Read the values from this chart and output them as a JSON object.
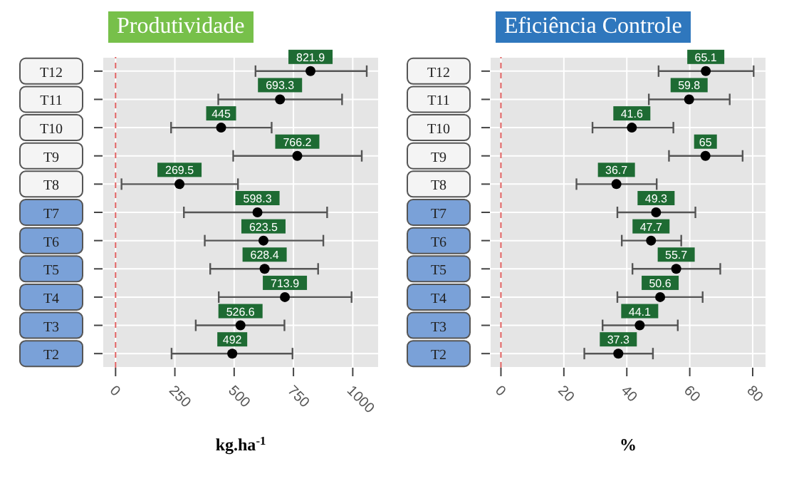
{
  "chart_data": [
    {
      "type": "scatter",
      "title": "Produtividade",
      "xlabel": "kg.ha$^{-1}$",
      "orientation": "horizontal",
      "categories": [
        "T12",
        "T11",
        "T10",
        "T9",
        "T8",
        "T7",
        "T6",
        "T5",
        "T4",
        "T3",
        "T2"
      ],
      "series": [
        {
          "color": "#000000",
          "values": [
            821.9,
            693.3,
            445,
            766.2,
            269.5,
            598.3,
            623.5,
            628.4,
            713.9,
            526.6,
            492
          ],
          "errors": [
            [
              590,
              1059
            ],
            [
              433,
              955
            ],
            [
              234,
              658
            ],
            [
              496,
              1038
            ],
            [
              25,
              516
            ],
            [
              288,
              892
            ],
            [
              376,
              876
            ],
            [
              399,
              854
            ],
            [
              435,
              995
            ],
            [
              338,
              712
            ],
            [
              236,
              746
            ]
          ]
        }
      ],
      "xlim": [
        -55,
        1110
      ],
      "xticks": [
        0,
        250,
        500,
        750,
        1000
      ],
      "grid": true,
      "marker": "circle",
      "data_labels": true,
      "ref_lines": [
        {
          "axis": "x",
          "value": 0,
          "color": "#e06060",
          "line_style": "dashed"
        }
      ]
    },
    {
      "type": "scatter",
      "title": "Eficiência Controle",
      "xlabel": "%",
      "orientation": "horizontal",
      "categories": [
        "T12",
        "T11",
        "T10",
        "T9",
        "T8",
        "T7",
        "T6",
        "T5",
        "T4",
        "T3",
        "T2"
      ],
      "series": [
        {
          "color": "#000000",
          "values": [
            65.1,
            59.8,
            41.6,
            65,
            36.7,
            49.3,
            47.7,
            55.7,
            50.6,
            44.1,
            37.3
          ],
          "errors": [
            [
              50.1,
              80.3
            ],
            [
              47,
              72.7
            ],
            [
              29.1,
              54.8
            ],
            [
              53.4,
              76.8
            ],
            [
              24,
              49.5
            ],
            [
              37,
              61.8
            ],
            [
              38.4,
              57.3
            ],
            [
              41.8,
              69.7
            ],
            [
              37,
              64.1
            ],
            [
              32.3,
              56.2
            ],
            [
              26.5,
              48.3
            ]
          ]
        }
      ],
      "xlim": [
        -3.5,
        84.3
      ],
      "xticks": [
        0,
        20,
        40,
        60,
        80
      ],
      "grid": true,
      "marker": "circle",
      "data_labels": true,
      "ref_lines": [
        {
          "axis": "x",
          "value": 0,
          "color": "#e06060",
          "line_style": "dashed"
        }
      ]
    }
  ]
}
